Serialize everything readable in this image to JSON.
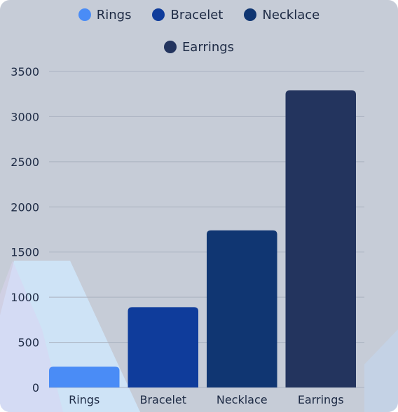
{
  "colors": {
    "background": "#c6ccd7",
    "grid": "#aab2c0",
    "shape_light": "#cfe6fb"
  },
  "chart_data": {
    "type": "bar",
    "categories": [
      "Rings",
      "Bracelet",
      "Necklace",
      "Earrings"
    ],
    "values": [
      230,
      890,
      1740,
      3290
    ],
    "colors": [
      "#4a8cf6",
      "#0f3c9b",
      "#103672",
      "#23345e"
    ],
    "title": "",
    "xlabel": "",
    "ylabel": "",
    "ylim": [
      0,
      3500
    ],
    "yticks": [
      0,
      500,
      1000,
      1500,
      2000,
      2500,
      3000,
      3500
    ],
    "grid": true,
    "legend_position": "top-center",
    "legend": [
      "Rings",
      "Bracelet",
      "Necklace",
      "Earrings"
    ]
  }
}
